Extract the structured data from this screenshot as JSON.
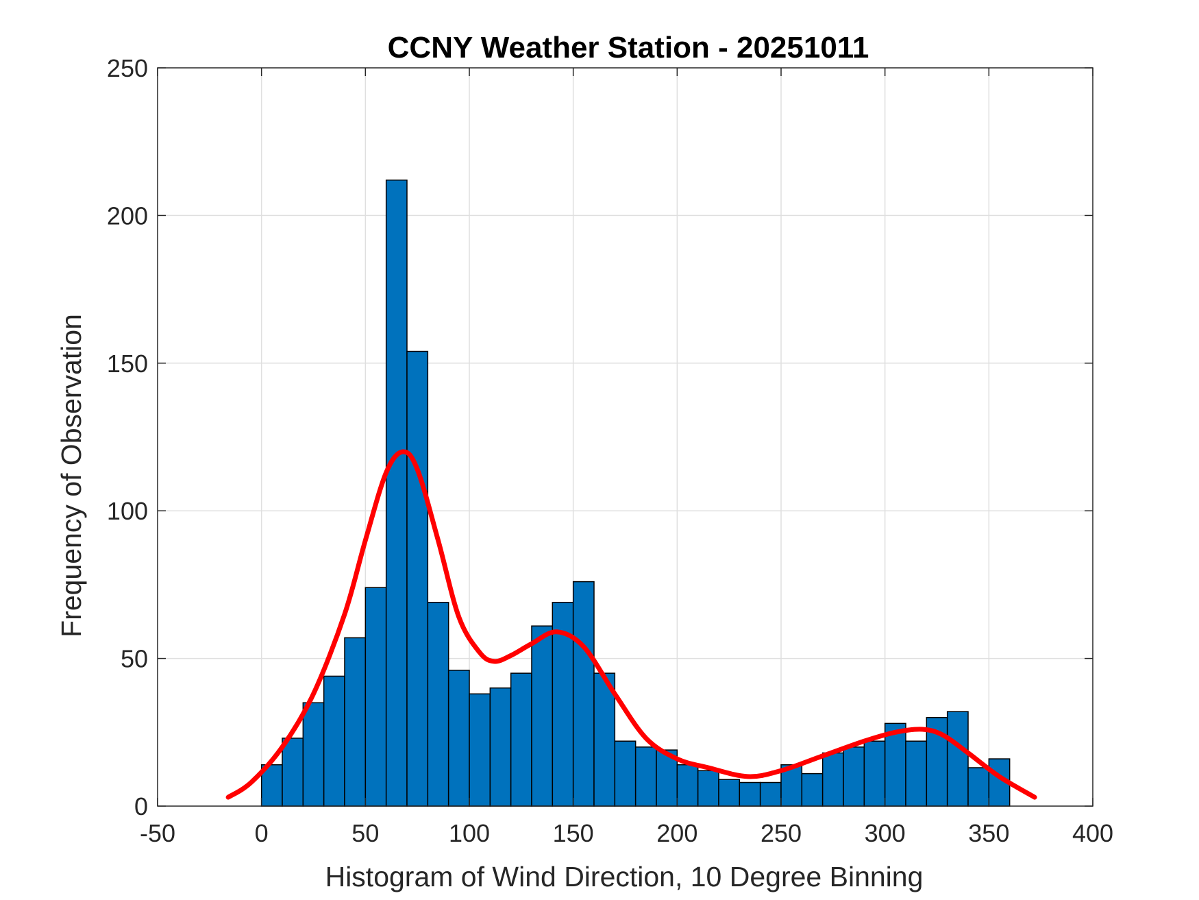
{
  "chart_data": {
    "type": "bar",
    "title": "CCNY Weather Station - 20251011",
    "xlabel": "Histogram of Wind Direction, 10 Degree Binning",
    "ylabel": "Frequency of Observation",
    "xlim": [
      -50,
      400
    ],
    "ylim": [
      0,
      250
    ],
    "xticks": [
      "-50",
      "0",
      "50",
      "100",
      "150",
      "200",
      "250",
      "300",
      "350",
      "400"
    ],
    "yticks": [
      "0",
      "50",
      "100",
      "150",
      "200",
      "250"
    ],
    "grid": true,
    "bin_width": 10,
    "bin_edges_start": [
      0,
      10,
      20,
      30,
      40,
      50,
      60,
      70,
      80,
      90,
      100,
      110,
      120,
      130,
      140,
      150,
      160,
      170,
      180,
      190,
      200,
      210,
      220,
      230,
      240,
      250,
      260,
      270,
      280,
      290,
      300,
      310,
      320,
      330,
      340,
      350
    ],
    "values": [
      14,
      23,
      35,
      44,
      57,
      74,
      212,
      154,
      69,
      46,
      38,
      40,
      45,
      61,
      69,
      76,
      45,
      22,
      20,
      19,
      14,
      12,
      9,
      8,
      8,
      14,
      11,
      18,
      20,
      22,
      28,
      22,
      30,
      32,
      13,
      16
    ],
    "fit_curve": {
      "x": [
        -16,
        -5,
        10,
        25,
        40,
        50,
        60,
        68,
        75,
        85,
        95,
        105,
        112,
        120,
        130,
        142,
        155,
        170,
        185,
        200,
        215,
        234,
        250,
        270,
        290,
        305,
        318,
        328,
        340,
        355,
        372
      ],
      "y": [
        3,
        8,
        20,
        38,
        65,
        90,
        113,
        120,
        114,
        90,
        64,
        52,
        49,
        51,
        55,
        59,
        54,
        38,
        23,
        16,
        13,
        10,
        12,
        17,
        22,
        25,
        26,
        24,
        18,
        10,
        3
      ]
    },
    "colors": {
      "bar_fill": "#0072BD",
      "bar_edge": "#000000",
      "curve": "#FF0000",
      "grid": "#DFDFDF",
      "axis": "#262626"
    }
  }
}
